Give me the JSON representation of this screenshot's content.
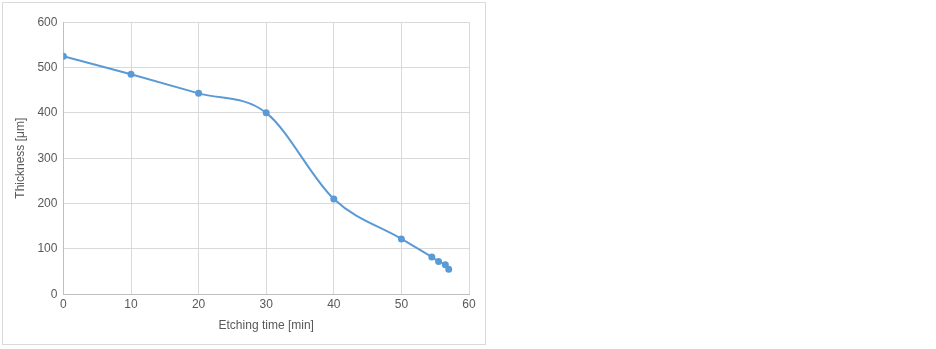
{
  "chart_data": {
    "type": "line",
    "x_label": "Etching time [min]",
    "y_label": "Thickness [μm]",
    "x": [
      0,
      10,
      20,
      30,
      40,
      50,
      54.5,
      55.5,
      56.5,
      57
    ],
    "series": [
      {
        "name": "Thickness",
        "color": "#5b9bd5",
        "marker": "circle",
        "line_style": "solid",
        "values": [
          525,
          485,
          443,
          400,
          210,
          122,
          82,
          72,
          65,
          55
        ]
      }
    ],
    "xlim": [
      0,
      60
    ],
    "xticks": [
      0,
      10,
      20,
      30,
      40,
      50,
      60
    ],
    "ylim": [
      0,
      600
    ],
    "yticks": [
      0,
      100,
      200,
      300,
      400,
      500,
      600
    ],
    "grid": true
  }
}
